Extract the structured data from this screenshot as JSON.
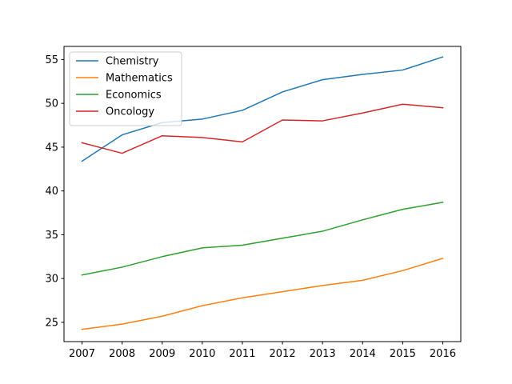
{
  "chart_data": {
    "type": "line",
    "title": "",
    "xlabel": "",
    "ylabel": "",
    "x": [
      2007,
      2008,
      2009,
      2010,
      2011,
      2012,
      2013,
      2014,
      2015,
      2016
    ],
    "x_tick_labels": [
      "2007",
      "2008",
      "2009",
      "2010",
      "2011",
      "2012",
      "2013",
      "2014",
      "2015",
      "2016"
    ],
    "xlim": [
      2006.55,
      2016.45
    ],
    "ylim": [
      22.8,
      56.5
    ],
    "y_ticks": [
      25,
      30,
      35,
      40,
      45,
      50,
      55
    ],
    "y_tick_labels": [
      "25",
      "30",
      "35",
      "40",
      "45",
      "50",
      "55"
    ],
    "grid": false,
    "legend_position": "upper-left",
    "series": [
      {
        "name": "Chemistry",
        "color": "#1f77b4",
        "values": [
          43.4,
          46.4,
          47.8,
          48.2,
          49.2,
          51.3,
          52.7,
          53.3,
          53.8,
          55.3
        ]
      },
      {
        "name": "Mathematics",
        "color": "#ff7f0e",
        "values": [
          24.2,
          24.8,
          25.7,
          26.9,
          27.8,
          28.5,
          29.2,
          29.8,
          30.9,
          32.3
        ]
      },
      {
        "name": "Economics",
        "color": "#2ca02c",
        "values": [
          30.4,
          31.3,
          32.5,
          33.5,
          33.8,
          34.6,
          35.4,
          36.7,
          37.9,
          38.7
        ]
      },
      {
        "name": "Oncology",
        "color": "#d62728",
        "values": [
          45.5,
          44.3,
          46.3,
          46.1,
          45.6,
          48.1,
          48.0,
          48.9,
          49.9,
          49.5
        ]
      }
    ]
  }
}
